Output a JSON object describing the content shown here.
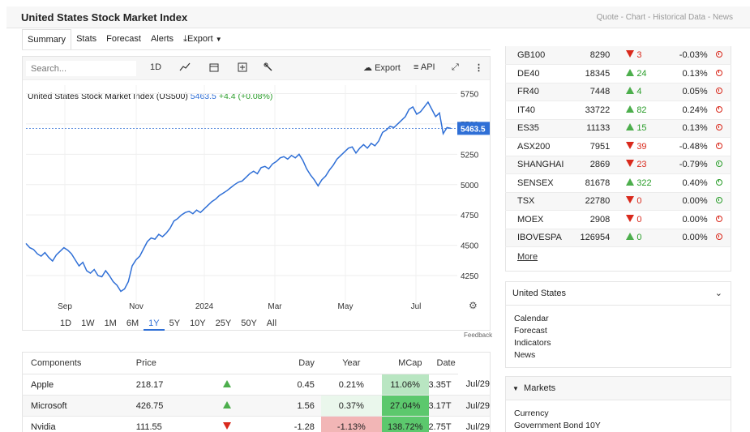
{
  "header": {
    "title": "United States Stock Market Index",
    "links": "Quote - Chart - Historical Data - News"
  },
  "tabs": [
    "Summary",
    "Stats",
    "Forecast",
    "Alerts",
    "Export"
  ],
  "toolbar": {
    "search_placeholder": "Search...",
    "interval": "1D",
    "export_label": "Export",
    "api_label": "API"
  },
  "chart_data": {
    "type": "line",
    "title": "United States Stock Market Index (US500)",
    "last_price": "5463.5",
    "change": "+4.4 (+0.08%)",
    "price_tag": "5463.5",
    "x_ticks": [
      "Sep",
      "Nov",
      "2024",
      "Mar",
      "May",
      "Jul"
    ],
    "y_ticks": [
      "5750",
      "5500",
      "5250",
      "5000",
      "4750",
      "4500",
      "4250"
    ],
    "ylim": [
      4150,
      5820
    ],
    "color": "#2f6fd6",
    "series": [
      {
        "values": [
          4515,
          4480,
          4465,
          4430,
          4410,
          4440,
          4400,
          4370,
          4420,
          4450,
          4480,
          4460,
          4430,
          4380,
          4330,
          4360,
          4290,
          4270,
          4300,
          4250,
          4240,
          4290,
          4250,
          4200,
          4170,
          4120,
          4140,
          4200,
          4330,
          4380,
          4410,
          4470,
          4530,
          4560,
          4550,
          4590,
          4570,
          4600,
          4640,
          4700,
          4720,
          4750,
          4770,
          4780,
          4760,
          4790,
          4770,
          4800,
          4830,
          4860,
          4880,
          4910,
          4930,
          4950,
          4975,
          5000,
          5020,
          5030,
          5060,
          5090,
          5110,
          5090,
          5140,
          5150,
          5130,
          5170,
          5190,
          5220,
          5230,
          5210,
          5240,
          5220,
          5250,
          5200,
          5130,
          5080,
          5040,
          4990,
          5040,
          5070,
          5120,
          5160,
          5210,
          5240,
          5270,
          5300,
          5310,
          5260,
          5300,
          5330,
          5300,
          5340,
          5320,
          5360,
          5430,
          5450,
          5480,
          5470,
          5500,
          5530,
          5560,
          5620,
          5640,
          5580,
          5600,
          5640,
          5680,
          5620,
          5560,
          5590,
          5420,
          5470,
          5463.5
        ]
      }
    ]
  },
  "ranges": [
    "1D",
    "1W",
    "1M",
    "6M",
    "1Y",
    "5Y",
    "10Y",
    "25Y",
    "50Y",
    "All"
  ],
  "active_range": "1Y",
  "feedback": "Feedback",
  "components": {
    "headers": [
      "Components",
      "Price",
      "",
      "Day",
      "Year",
      "MCap",
      "Date"
    ],
    "rows": [
      {
        "name": "Apple",
        "price": "218.17",
        "dir": "up",
        "day": "0.45",
        "daypct": "0.21%",
        "year": "11.06%",
        "mcap": "3.35T",
        "date": "Jul/29"
      },
      {
        "name": "Microsoft",
        "price": "426.75",
        "dir": "up",
        "day": "1.56",
        "daypct": "0.37%",
        "year": "27.04%",
        "mcap": "3.17T",
        "date": "Jul/29"
      },
      {
        "name": "Nvidia",
        "price": "111.55",
        "dir": "down",
        "day": "-1.28",
        "daypct": "-1.13%",
        "year": "138.72%",
        "mcap": "2.75T",
        "date": "Jul/29"
      }
    ]
  },
  "markets": [
    {
      "name": "GB100",
      "value": "8290",
      "dir": "down",
      "chg": "3",
      "pct": "-0.03%",
      "clock": "closed"
    },
    {
      "name": "DE40",
      "value": "18345",
      "dir": "up",
      "chg": "24",
      "pct": "0.13%",
      "clock": "closed"
    },
    {
      "name": "FR40",
      "value": "7448",
      "dir": "up",
      "chg": "4",
      "pct": "0.05%",
      "clock": "closed"
    },
    {
      "name": "IT40",
      "value": "33722",
      "dir": "up",
      "chg": "82",
      "pct": "0.24%",
      "clock": "closed"
    },
    {
      "name": "ES35",
      "value": "11133",
      "dir": "up",
      "chg": "15",
      "pct": "0.13%",
      "clock": "closed"
    },
    {
      "name": "ASX200",
      "value": "7951",
      "dir": "down",
      "chg": "39",
      "pct": "-0.48%",
      "clock": "closed"
    },
    {
      "name": "SHANGHAI",
      "value": "2869",
      "dir": "down",
      "chg": "23",
      "pct": "-0.79%",
      "clock": "open"
    },
    {
      "name": "SENSEX",
      "value": "81678",
      "dir": "up",
      "chg": "322",
      "pct": "0.40%",
      "clock": "open"
    },
    {
      "name": "TSX",
      "value": "22780",
      "dir": "down",
      "chg": "0",
      "pct": "0.00%",
      "clock": "open"
    },
    {
      "name": "MOEX",
      "value": "2908",
      "dir": "down",
      "chg": "0",
      "pct": "0.00%",
      "clock": "closed"
    },
    {
      "name": "IBOVESPA",
      "value": "126954",
      "dir": "up",
      "chg": "0",
      "pct": "0.00%",
      "clock": "closed"
    }
  ],
  "more_label": "More",
  "us_section": {
    "title": "United States",
    "links": [
      "Calendar",
      "Forecast",
      "Indicators",
      "News"
    ]
  },
  "markets_section": {
    "title": "Markets",
    "links": [
      "Currency",
      "Government Bond 10Y"
    ]
  }
}
